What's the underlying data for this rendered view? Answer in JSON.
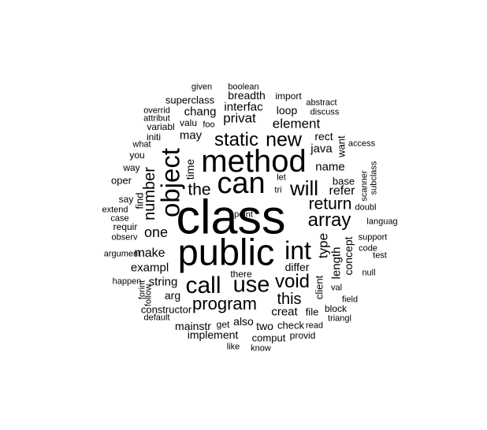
{
  "words": [
    {
      "text": "class",
      "size": 61
    },
    {
      "text": "public",
      "size": 47
    },
    {
      "text": "method",
      "size": 40
    },
    {
      "text": "can",
      "size": 38
    },
    {
      "text": "object",
      "size": 33
    },
    {
      "text": "int",
      "size": 32
    },
    {
      "text": "call",
      "size": 30
    },
    {
      "text": "use",
      "size": 29
    },
    {
      "text": "will",
      "size": 26
    },
    {
      "text": "new",
      "size": 25
    },
    {
      "text": "static",
      "size": 24
    },
    {
      "text": "array",
      "size": 24
    },
    {
      "text": "void",
      "size": 24
    },
    {
      "text": "the",
      "size": 21
    },
    {
      "text": "number",
      "size": 20
    },
    {
      "text": "program",
      "size": 22
    },
    {
      "text": "return",
      "size": 21
    },
    {
      "text": "this",
      "size": 20
    },
    {
      "text": "one",
      "size": 18
    },
    {
      "text": "element",
      "size": 17
    },
    {
      "text": "privat",
      "size": 17
    },
    {
      "text": "type",
      "size": 17
    },
    {
      "text": "make",
      "size": 16
    },
    {
      "text": "refer",
      "size": 16
    },
    {
      "text": "exampl",
      "size": 15
    },
    {
      "text": "name",
      "size": 15
    },
    {
      "text": "java",
      "size": 15
    },
    {
      "text": "chang",
      "size": 15
    },
    {
      "text": "interfac",
      "size": 15
    },
    {
      "text": "string",
      "size": 15
    },
    {
      "text": "may",
      "size": 15
    },
    {
      "text": "creat",
      "size": 15
    },
    {
      "text": "length",
      "size": 15
    },
    {
      "text": "concept",
      "size": 14
    },
    {
      "text": "loop",
      "size": 14
    },
    {
      "text": "breadth",
      "size": 14
    },
    {
      "text": "arg",
      "size": 14
    },
    {
      "text": "time",
      "size": 14
    },
    {
      "text": "mainstr",
      "size": 14
    },
    {
      "text": "implement",
      "size": 14
    },
    {
      "text": "rect",
      "size": 14
    },
    {
      "text": "differ",
      "size": 14
    },
    {
      "text": "also",
      "size": 14
    },
    {
      "text": "two",
      "size": 14
    },
    {
      "text": "find",
      "size": 13
    },
    {
      "text": "client",
      "size": 13
    },
    {
      "text": "check",
      "size": 13
    },
    {
      "text": "comput",
      "size": 13
    },
    {
      "text": "base",
      "size": 13
    },
    {
      "text": "want",
      "size": 13
    },
    {
      "text": "superclass",
      "size": 13
    },
    {
      "text": "constructor",
      "size": 13
    },
    {
      "text": "file",
      "size": 13
    },
    {
      "text": "oper",
      "size": 13
    },
    {
      "text": "valu",
      "size": 12
    },
    {
      "text": "way",
      "size": 12
    },
    {
      "text": "you",
      "size": 12
    },
    {
      "text": "requir",
      "size": 12
    },
    {
      "text": "say",
      "size": 12
    },
    {
      "text": "import",
      "size": 12
    },
    {
      "text": "there",
      "size": 12
    },
    {
      "text": "block",
      "size": 12
    },
    {
      "text": "get",
      "size": 12
    },
    {
      "text": "variabl",
      "size": 12
    },
    {
      "text": "initi",
      "size": 12
    },
    {
      "text": "provid",
      "size": 12
    },
    {
      "text": "given",
      "size": 11
    },
    {
      "text": "boolean",
      "size": 11
    },
    {
      "text": "overrid",
      "size": 11
    },
    {
      "text": "attribut",
      "size": 11
    },
    {
      "text": "foo",
      "size": 11
    },
    {
      "text": "abstract",
      "size": 11
    },
    {
      "text": "discuss",
      "size": 11
    },
    {
      "text": "what",
      "size": 11
    },
    {
      "text": "access",
      "size": 11
    },
    {
      "text": "let",
      "size": 11
    },
    {
      "text": "tri",
      "size": 11
    },
    {
      "text": "scanner",
      "size": 11
    },
    {
      "text": "subclass",
      "size": 11
    },
    {
      "text": "extend",
      "size": 11
    },
    {
      "text": "case",
      "size": 11
    },
    {
      "text": "observ",
      "size": 11
    },
    {
      "text": "languag",
      "size": 11
    },
    {
      "text": "support",
      "size": 11
    },
    {
      "text": "code",
      "size": 11
    },
    {
      "text": "argument",
      "size": 11
    },
    {
      "text": "test",
      "size": 11
    },
    {
      "text": "null",
      "size": 11
    },
    {
      "text": "happen",
      "size": 11
    },
    {
      "text": "forint",
      "size": 11
    },
    {
      "text": "follow",
      "size": 11
    },
    {
      "text": "val",
      "size": 11
    },
    {
      "text": "field",
      "size": 11
    },
    {
      "text": "triangl",
      "size": 11
    },
    {
      "text": "default",
      "size": 11
    },
    {
      "text": "read",
      "size": 11
    },
    {
      "text": "like",
      "size": 11
    },
    {
      "text": "know",
      "size": 11
    },
    {
      "text": "doubl",
      "size": 11
    },
    {
      "text": "point",
      "size": 11
    }
  ]
}
